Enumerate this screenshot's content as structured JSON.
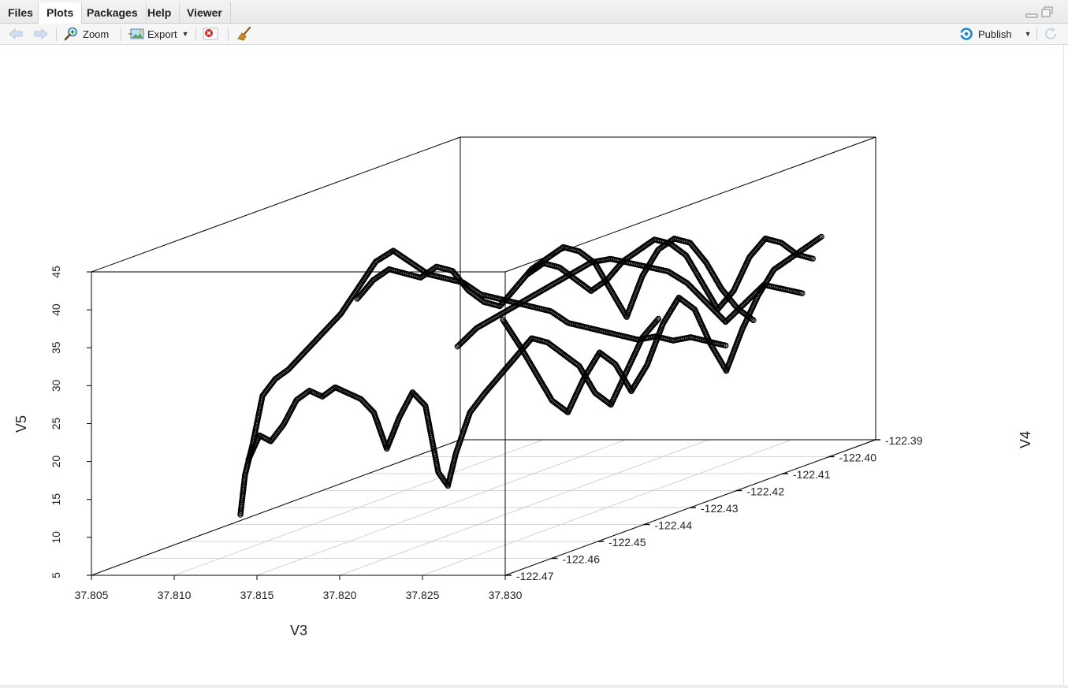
{
  "tabs": [
    {
      "label": "Files",
      "active": false
    },
    {
      "label": "Plots",
      "active": true
    },
    {
      "label": "Packages",
      "active": false
    },
    {
      "label": "Help",
      "active": false
    },
    {
      "label": "Viewer",
      "active": false
    }
  ],
  "toolbar": {
    "zoom_label": "Zoom",
    "export_label": "Export",
    "publish_label": "Publish"
  },
  "icons": {
    "back": "back-arrow-icon",
    "forward": "forward-arrow-icon",
    "zoom": "magnifier-icon",
    "export": "export-image-icon",
    "remove": "remove-plot-icon",
    "clear": "broom-icon",
    "publish": "publish-icon",
    "refresh": "refresh-icon"
  },
  "colors": {
    "accent_blue": "#1e88d0",
    "remove_red": "#cc2222",
    "points": "#000000",
    "grid": "#c8c8c8"
  },
  "chart_data": {
    "type": "scatter",
    "projection": "3d",
    "xlabel": "V3",
    "ylabel": "V4",
    "zlabel": "V5",
    "xlim": [
      37.805,
      37.83
    ],
    "ylim": [
      -122.47,
      -122.39
    ],
    "zlim": [
      5,
      45
    ],
    "x_ticks": [
      "37.805",
      "37.810",
      "37.815",
      "37.820",
      "37.825",
      "37.830"
    ],
    "y_ticks": [
      "-122.47",
      "-122.46",
      "-122.45",
      "-122.44",
      "-122.43",
      "-122.42",
      "-122.41",
      "-122.40",
      "-122.39"
    ],
    "z_ticks": [
      "5",
      "10",
      "15",
      "20",
      "25",
      "30",
      "35",
      "40",
      "45"
    ],
    "grid": true,
    "marker": "open-circle",
    "series": [
      {
        "points": [
          [
            37.814,
            -122.47,
            13
          ],
          [
            37.814,
            -122.469,
            18
          ],
          [
            37.8142,
            -122.468,
            22
          ],
          [
            37.8145,
            -122.467,
            28
          ],
          [
            37.815,
            -122.466,
            30
          ],
          [
            37.8155,
            -122.465,
            31
          ],
          [
            37.816,
            -122.463,
            33
          ],
          [
            37.8165,
            -122.461,
            35
          ],
          [
            37.817,
            -122.459,
            37
          ],
          [
            37.8175,
            -122.457,
            40
          ],
          [
            37.818,
            -122.455,
            43
          ],
          [
            37.8185,
            -122.453,
            44
          ],
          [
            37.819,
            -122.451,
            42
          ],
          [
            37.8195,
            -122.449,
            40
          ],
          [
            37.82,
            -122.447,
            39
          ],
          [
            37.8205,
            -122.445,
            38
          ],
          [
            37.821,
            -122.443,
            36
          ],
          [
            37.8215,
            -122.441,
            35
          ],
          [
            37.822,
            -122.439,
            34
          ],
          [
            37.8225,
            -122.437,
            33
          ],
          [
            37.823,
            -122.435,
            32
          ],
          [
            37.8235,
            -122.433,
            30
          ],
          [
            37.824,
            -122.431,
            29
          ],
          [
            37.8245,
            -122.429,
            28
          ],
          [
            37.825,
            -122.427,
            27
          ],
          [
            37.8255,
            -122.425,
            26
          ],
          [
            37.826,
            -122.423,
            26
          ],
          [
            37.8265,
            -122.421,
            25
          ],
          [
            37.827,
            -122.419,
            25
          ],
          [
            37.8275,
            -122.417,
            24
          ],
          [
            37.828,
            -122.415,
            23
          ]
        ]
      },
      {
        "points": [
          [
            37.8142,
            -122.469,
            20
          ],
          [
            37.8146,
            -122.468,
            23
          ],
          [
            37.815,
            -122.467,
            22
          ],
          [
            37.8155,
            -122.466,
            24
          ],
          [
            37.816,
            -122.465,
            27
          ],
          [
            37.8165,
            -122.464,
            28
          ],
          [
            37.817,
            -122.463,
            27
          ],
          [
            37.8175,
            -122.462,
            28
          ],
          [
            37.818,
            -122.461,
            27
          ],
          [
            37.8185,
            -122.46,
            26
          ],
          [
            37.819,
            -122.459,
            24
          ],
          [
            37.8195,
            -122.458,
            19
          ],
          [
            37.82,
            -122.457,
            23
          ],
          [
            37.8205,
            -122.456,
            26
          ],
          [
            37.821,
            -122.455,
            24
          ],
          [
            37.8215,
            -122.454,
            15
          ],
          [
            37.8218,
            -122.453,
            13
          ],
          [
            37.822,
            -122.452,
            17
          ],
          [
            37.8223,
            -122.45,
            22
          ],
          [
            37.8226,
            -122.448,
            24
          ],
          [
            37.823,
            -122.446,
            26
          ],
          [
            37.8234,
            -122.444,
            28
          ],
          [
            37.8238,
            -122.442,
            30
          ],
          [
            37.8242,
            -122.44,
            29
          ],
          [
            37.8246,
            -122.438,
            27
          ],
          [
            37.825,
            -122.436,
            25
          ],
          [
            37.8254,
            -122.434,
            21
          ],
          [
            37.8258,
            -122.432,
            19
          ],
          [
            37.8262,
            -122.43,
            23
          ],
          [
            37.8266,
            -122.428,
            27
          ],
          [
            37.827,
            -122.426,
            29
          ]
        ]
      },
      {
        "points": [
          [
            37.818,
            -122.459,
            39
          ],
          [
            37.8184,
            -122.457,
            41
          ],
          [
            37.8188,
            -122.455,
            42
          ],
          [
            37.8192,
            -122.453,
            41
          ],
          [
            37.8196,
            -122.451,
            40
          ],
          [
            37.82,
            -122.449,
            41
          ],
          [
            37.8204,
            -122.447,
            40
          ],
          [
            37.8208,
            -122.445,
            37
          ],
          [
            37.8212,
            -122.443,
            35
          ],
          [
            37.8216,
            -122.441,
            34
          ],
          [
            37.822,
            -122.439,
            36
          ],
          [
            37.8224,
            -122.437,
            38
          ],
          [
            37.8228,
            -122.435,
            39
          ],
          [
            37.8232,
            -122.433,
            40
          ],
          [
            37.8236,
            -122.431,
            39
          ],
          [
            37.824,
            -122.429,
            37
          ],
          [
            37.8244,
            -122.427,
            33
          ],
          [
            37.8248,
            -122.425,
            29
          ],
          [
            37.8252,
            -122.423,
            34
          ],
          [
            37.8256,
            -122.421,
            37
          ],
          [
            37.826,
            -122.419,
            38
          ],
          [
            37.8264,
            -122.417,
            37
          ],
          [
            37.8268,
            -122.415,
            34
          ],
          [
            37.8272,
            -122.413,
            30
          ],
          [
            37.8276,
            -122.411,
            27
          ],
          [
            37.828,
            -122.409,
            25
          ]
        ]
      },
      {
        "points": [
          [
            37.8215,
            -122.44,
            32
          ],
          [
            37.822,
            -122.438,
            28
          ],
          [
            37.8224,
            -122.436,
            24
          ],
          [
            37.8228,
            -122.434,
            20
          ],
          [
            37.8232,
            -122.432,
            18
          ],
          [
            37.8236,
            -122.43,
            22
          ],
          [
            37.824,
            -122.428,
            25
          ],
          [
            37.8244,
            -122.426,
            23
          ],
          [
            37.8248,
            -122.424,
            19
          ],
          [
            37.8252,
            -122.422,
            22
          ],
          [
            37.8256,
            -122.42,
            27
          ],
          [
            37.826,
            -122.418,
            30
          ],
          [
            37.8264,
            -122.416,
            28
          ],
          [
            37.8268,
            -122.414,
            23
          ],
          [
            37.8272,
            -122.412,
            19
          ],
          [
            37.8276,
            -122.41,
            24
          ],
          [
            37.828,
            -122.408,
            28
          ],
          [
            37.8284,
            -122.406,
            31
          ],
          [
            37.8288,
            -122.404,
            32
          ],
          [
            37.8292,
            -122.402,
            33
          ],
          [
            37.8296,
            -122.4,
            34
          ]
        ]
      },
      {
        "points": [
          [
            37.823,
            -122.44,
            38
          ],
          [
            37.8234,
            -122.438,
            39
          ],
          [
            37.8238,
            -122.436,
            38
          ],
          [
            37.8242,
            -122.434,
            36
          ],
          [
            37.8246,
            -122.432,
            34
          ],
          [
            37.825,
            -122.43,
            35
          ],
          [
            37.8254,
            -122.428,
            37
          ],
          [
            37.8258,
            -122.426,
            38
          ],
          [
            37.8262,
            -122.424,
            39
          ],
          [
            37.8266,
            -122.422,
            38
          ],
          [
            37.827,
            -122.42,
            36
          ],
          [
            37.8274,
            -122.418,
            32
          ],
          [
            37.8278,
            -122.416,
            28
          ],
          [
            37.8282,
            -122.414,
            30
          ],
          [
            37.8286,
            -122.412,
            34
          ],
          [
            37.829,
            -122.41,
            36
          ],
          [
            37.8294,
            -122.408,
            35
          ],
          [
            37.8298,
            -122.406,
            33
          ],
          [
            37.8302,
            -122.404,
            32
          ]
        ]
      },
      {
        "points": [
          [
            37.8182,
            -122.438,
            28
          ],
          [
            37.8188,
            -122.436,
            30
          ],
          [
            37.8194,
            -122.434,
            31
          ],
          [
            37.82,
            -122.432,
            32
          ],
          [
            37.8206,
            -122.43,
            33
          ],
          [
            37.8212,
            -122.428,
            34
          ],
          [
            37.8218,
            -122.426,
            35
          ],
          [
            37.8224,
            -122.424,
            36
          ],
          [
            37.823,
            -122.422,
            36
          ],
          [
            37.8236,
            -122.42,
            35
          ],
          [
            37.8242,
            -122.418,
            34
          ],
          [
            37.8248,
            -122.416,
            33
          ],
          [
            37.8254,
            -122.414,
            31
          ],
          [
            37.826,
            -122.412,
            28
          ],
          [
            37.8266,
            -122.41,
            25
          ],
          [
            37.8272,
            -122.408,
            27
          ],
          [
            37.8278,
            -122.406,
            29
          ],
          [
            37.8284,
            -122.404,
            28
          ],
          [
            37.829,
            -122.402,
            27
          ]
        ]
      }
    ]
  }
}
